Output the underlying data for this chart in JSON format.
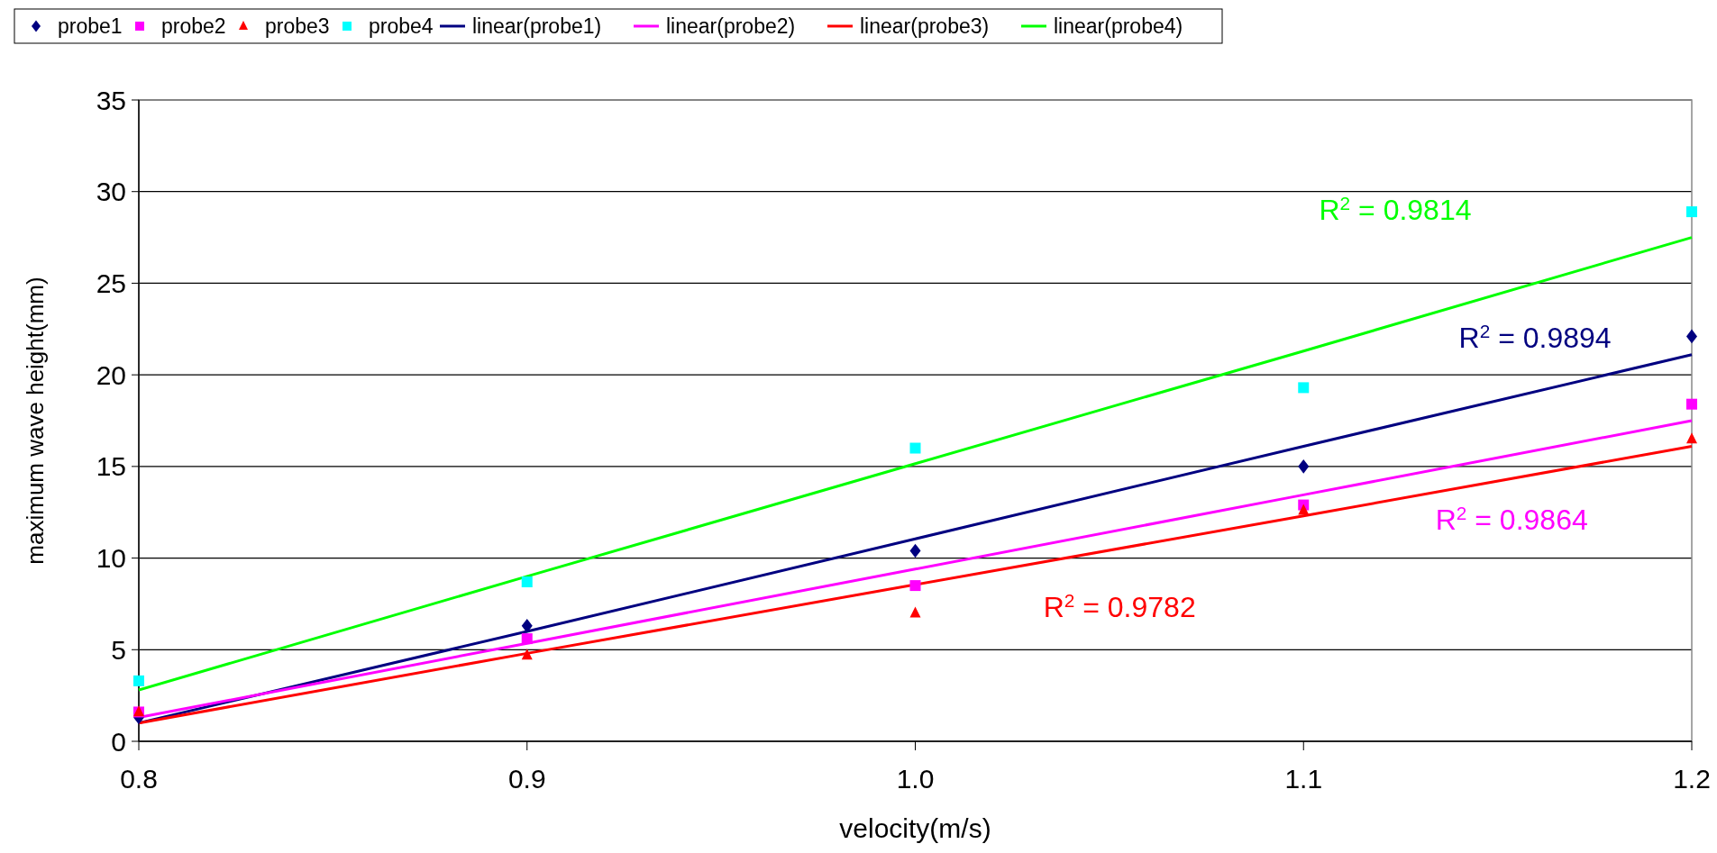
{
  "chart_data": {
    "type": "scatter",
    "xlabel": "velocity(m/s)",
    "ylabel": "maximum wave height(mm)",
    "x": [
      0.8,
      0.9,
      1.0,
      1.1,
      1.2
    ],
    "xlim": [
      0.8,
      1.2
    ],
    "xticks": [
      {
        "value": 0.8,
        "label": "0.8"
      },
      {
        "value": 0.9,
        "label": "0.9"
      },
      {
        "value": 1.0,
        "label": "1.0"
      },
      {
        "value": 1.1,
        "label": "1.1"
      },
      {
        "value": 1.2,
        "label": "1.2"
      }
    ],
    "ylim": [
      0,
      35
    ],
    "yticks": [
      0,
      5,
      10,
      15,
      20,
      25,
      30,
      35
    ],
    "grid": "y",
    "legend": "top",
    "series": [
      {
        "name": "probe1",
        "color": "#000080",
        "marker": "diamond",
        "values": [
          1.3,
          6.3,
          10.4,
          15.0,
          22.1
        ]
      },
      {
        "name": "probe2",
        "color": "#ff00ff",
        "marker": "square",
        "values": [
          1.6,
          5.6,
          8.5,
          12.9,
          18.4
        ]
      },
      {
        "name": "probe3",
        "color": "#ff0000",
        "marker": "triangle",
        "values": [
          1.6,
          4.7,
          7.0,
          12.6,
          16.5
        ]
      },
      {
        "name": "probe4",
        "color": "#00ffff",
        "marker": "square",
        "values": [
          3.3,
          8.7,
          16.0,
          19.3,
          28.9
        ]
      },
      {
        "name": "linear(probe1)",
        "type": "line",
        "color": "#000080",
        "values": [
          1.0,
          6.0,
          11.05,
          16.1,
          21.1
        ]
      },
      {
        "name": "linear(probe2)",
        "type": "line",
        "color": "#ff00ff",
        "values": [
          1.3,
          5.35,
          9.4,
          13.45,
          17.5
        ]
      },
      {
        "name": "linear(probe3)",
        "type": "line",
        "color": "#ff0000",
        "values": [
          1.0,
          4.8,
          8.55,
          12.3,
          16.1
        ]
      },
      {
        "name": "linear(probe4)",
        "type": "line",
        "color": "#00ff00",
        "values": [
          2.8,
          9.0,
          15.15,
          21.3,
          27.5
        ]
      }
    ],
    "annotations": [
      "R$^{2}$ = 0.9814",
      "R$^{2}$ = 0.9894",
      "R$^{2}$ = 0.9864",
      "R$^{2}$ = 0.9782"
    ]
  }
}
